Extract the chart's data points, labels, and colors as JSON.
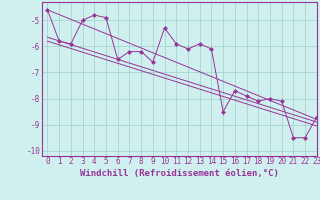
{
  "xlabel": "Windchill (Refroidissement éolien,°C)",
  "ylabel": "",
  "bg_color": "#cff0ee",
  "grid_color": "#9ecfca",
  "line_color": "#993399",
  "marker_color": "#993399",
  "xlim": [
    -0.5,
    23
  ],
  "ylim": [
    -10.2,
    -4.3
  ],
  "xticks": [
    0,
    1,
    2,
    3,
    4,
    5,
    6,
    7,
    8,
    9,
    10,
    11,
    12,
    13,
    14,
    15,
    16,
    17,
    18,
    19,
    20,
    21,
    22,
    23
  ],
  "yticks": [
    -10,
    -9,
    -8,
    -7,
    -6,
    -5
  ],
  "series1_x": [
    0,
    1,
    2,
    3,
    4,
    5,
    6,
    7,
    8,
    9,
    10,
    11,
    12,
    13,
    14,
    15,
    16,
    17,
    18,
    19,
    20,
    21,
    22,
    23
  ],
  "series1_y": [
    -4.6,
    -5.8,
    -5.9,
    -5.0,
    -4.8,
    -4.9,
    -6.5,
    -6.2,
    -6.2,
    -6.6,
    -5.3,
    -5.9,
    -6.1,
    -5.9,
    -6.1,
    -8.5,
    -7.7,
    -7.9,
    -8.1,
    -8.0,
    -8.1,
    -9.5,
    -9.5,
    -8.7
  ],
  "trend1_x": [
    0,
    23
  ],
  "trend1_y": [
    -4.6,
    -8.8
  ],
  "trend2_x": [
    0,
    23
  ],
  "trend2_y": [
    -5.65,
    -8.9
  ],
  "trend3_x": [
    0,
    23
  ],
  "trend3_y": [
    -5.8,
    -9.05
  ],
  "fontsize_tick": 5.5,
  "fontsize_xlabel": 6.5,
  "marker": "D",
  "markersize": 2.0,
  "linewidth": 0.7
}
